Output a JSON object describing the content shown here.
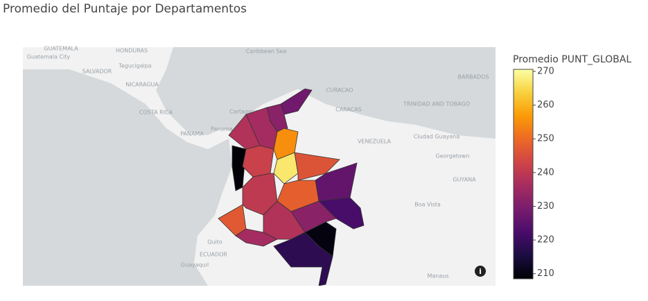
{
  "chart_data": {
    "type": "choropleth",
    "title": "Promedio del Puntaje por Departamentos",
    "colorbar_title": "Promedio PUNT_GLOBAL",
    "colorscale": [
      "#000004",
      "#1b0c41",
      "#4a0c6b",
      "#781c6d",
      "#a52c60",
      "#cf4446",
      "#ed6925",
      "#fb9b06",
      "#f7d13d",
      "#fcffa4"
    ],
    "clim": [
      208.5,
      270.6
    ],
    "cticks": [
      210,
      220,
      230,
      240,
      250,
      260,
      270
    ],
    "values": [
      228,
      232,
      236,
      238,
      209,
      242,
      255,
      267,
      246,
      226,
      248,
      222,
      247,
      240,
      236,
      238,
      232,
      210,
      218
    ],
    "map_labels": [
      "GUATEMALA",
      "HONDURAS",
      "Guatemala City",
      "Tegucigalpa",
      "SALVADOR",
      "NICARAGUA",
      "COSTA RICA",
      "PANAMA",
      "Panama",
      "Caribbean Sea",
      "Cartagena",
      "CURACAO",
      "CARACAS",
      "VENEZUELA",
      "BARBADOS",
      "TRINIDAD AND TOBAGO",
      "Ciudad Guayana",
      "Georgetown",
      "GUYANA",
      "Boa Vista",
      "Quito",
      "ECUADOR",
      "Guayaquil",
      "Manaus"
    ]
  }
}
